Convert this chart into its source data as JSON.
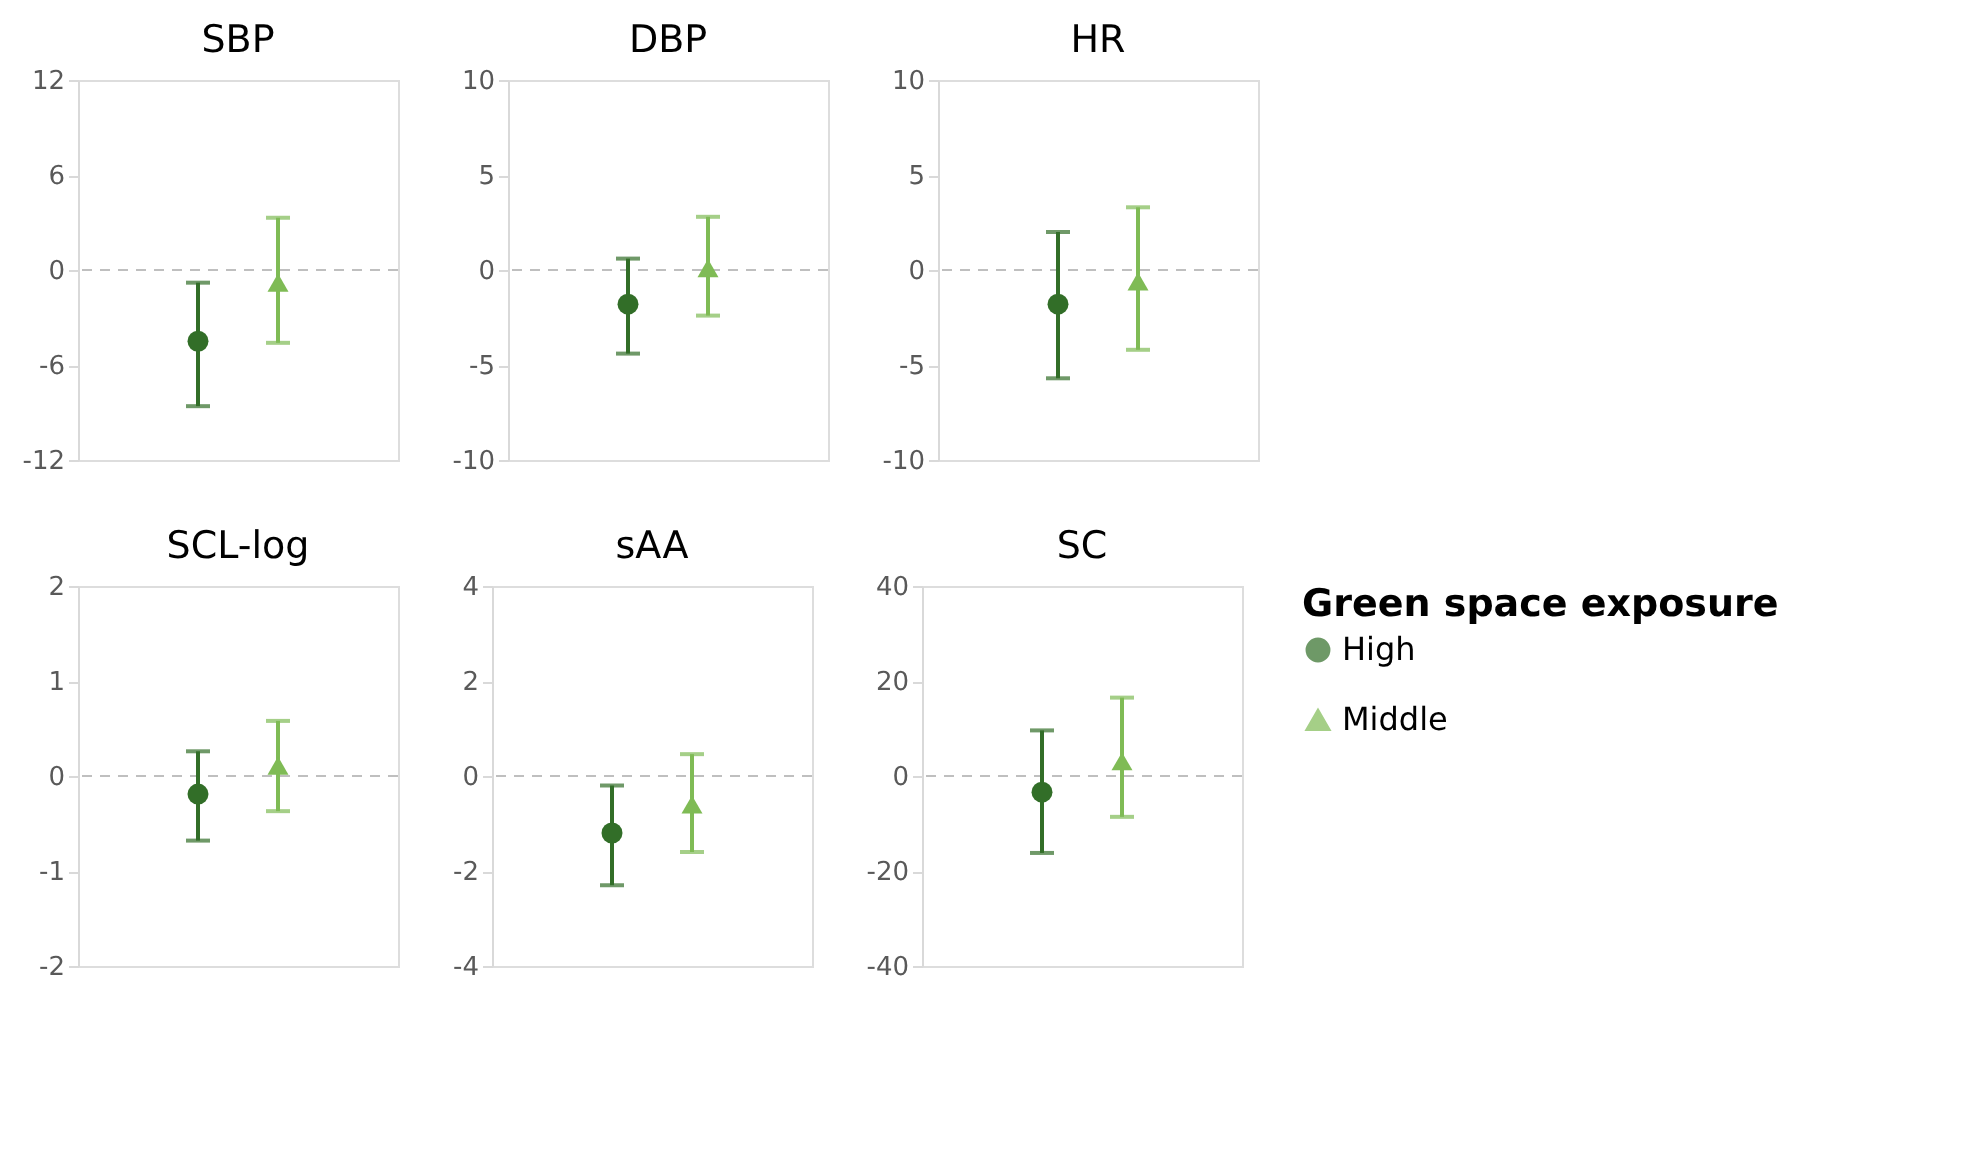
{
  "chart_data": [
    {
      "type": "scatter",
      "title": "SBP",
      "categories": [
        null,
        null
      ],
      "ylim": [
        -12,
        12
      ],
      "yticks": [
        -12,
        -6,
        0,
        6,
        12
      ],
      "grid": false,
      "legend": false,
      "ref_lines": [
        {
          "axis": "y",
          "value": 0,
          "color": "#bfbfbf",
          "line_style": "dashed"
        }
      ],
      "series": [
        {
          "color": "#326e28",
          "marker": "circle",
          "values": [
            -4.5,
            null
          ],
          "errors": [
            [
              -8.6,
              -0.8
            ],
            null
          ]
        },
        {
          "color": "#7fbb55",
          "marker": "triangle",
          "values": [
            null,
            -0.8
          ],
          "errors": [
            null,
            [
              -4.6,
              3.3
            ]
          ]
        }
      ]
    },
    {
      "type": "scatter",
      "title": "DBP",
      "categories": [
        null,
        null
      ],
      "ylim": [
        -10,
        10
      ],
      "yticks": [
        -10,
        -5,
        0,
        5,
        10
      ],
      "grid": false,
      "legend": false,
      "ref_lines": [
        {
          "axis": "y",
          "value": 0,
          "color": "#bfbfbf",
          "line_style": "dashed"
        }
      ],
      "series": [
        {
          "color": "#326e28",
          "marker": "circle",
          "values": [
            -1.8,
            null
          ],
          "errors": [
            [
              -4.4,
              0.6
            ],
            null
          ]
        },
        {
          "color": "#7fbb55",
          "marker": "triangle",
          "values": [
            null,
            0.1
          ],
          "errors": [
            null,
            [
              -2.4,
              2.8
            ]
          ]
        }
      ]
    },
    {
      "type": "scatter",
      "title": "HR",
      "categories": [
        null,
        null
      ],
      "ylim": [
        -10,
        10
      ],
      "yticks": [
        -10,
        -5,
        0,
        5,
        10
      ],
      "grid": false,
      "legend": false,
      "ref_lines": [
        {
          "axis": "y",
          "value": 0,
          "color": "#bfbfbf",
          "line_style": "dashed"
        }
      ],
      "series": [
        {
          "color": "#326e28",
          "marker": "circle",
          "values": [
            -1.8,
            null
          ],
          "errors": [
            [
              -5.7,
              2.0
            ],
            null
          ]
        },
        {
          "color": "#7fbb55",
          "marker": "triangle",
          "values": [
            null,
            -0.6
          ],
          "errors": [
            null,
            [
              -4.2,
              3.3
            ]
          ]
        }
      ]
    },
    {
      "type": "scatter",
      "title": "SCL-log",
      "categories": [
        null,
        null
      ],
      "ylim": [
        -2,
        2
      ],
      "yticks": [
        -2,
        -1,
        0,
        1,
        2
      ],
      "grid": false,
      "legend": false,
      "ref_lines": [
        {
          "axis": "y",
          "value": 0,
          "color": "#bfbfbf",
          "line_style": "dashed"
        }
      ],
      "series": [
        {
          "color": "#326e28",
          "marker": "circle",
          "values": [
            -0.19,
            null
          ],
          "errors": [
            [
              -0.68,
              0.26
            ],
            null
          ]
        },
        {
          "color": "#7fbb55",
          "marker": "triangle",
          "values": [
            null,
            0.11
          ],
          "errors": [
            null,
            [
              -0.37,
              0.58
            ]
          ]
        }
      ]
    },
    {
      "type": "scatter",
      "title": "sAA",
      "categories": [
        null,
        null
      ],
      "ylim": [
        -4,
        4
      ],
      "yticks": [
        -4,
        -2,
        0,
        2,
        4
      ],
      "grid": false,
      "legend": false,
      "ref_lines": [
        {
          "axis": "y",
          "value": 0,
          "color": "#bfbfbf",
          "line_style": "dashed"
        }
      ],
      "series": [
        {
          "color": "#326e28",
          "marker": "circle",
          "values": [
            -1.2,
            null
          ],
          "errors": [
            [
              -2.3,
              -0.2
            ],
            null
          ]
        },
        {
          "color": "#7fbb55",
          "marker": "triangle",
          "values": [
            null,
            -0.6
          ],
          "errors": [
            null,
            [
              -1.6,
              0.46
            ]
          ]
        }
      ]
    },
    {
      "type": "scatter",
      "title": "SC",
      "categories": [
        null,
        null
      ],
      "ylim": [
        -40,
        40
      ],
      "yticks": [
        -40,
        -20,
        0,
        20,
        40
      ],
      "grid": false,
      "legend": "right",
      "legend_title": "Green space exposure",
      "ref_lines": [
        {
          "axis": "y",
          "value": 0,
          "color": "#bfbfbf",
          "line_style": "dashed"
        }
      ],
      "series": [
        {
          "name": "High",
          "color": "#326e28",
          "marker": "circle",
          "values": [
            -3.4,
            null
          ],
          "errors": [
            [
              -16.2,
              9.6
            ],
            null
          ]
        },
        {
          "name": "Middle",
          "color": "#7fbb55",
          "marker": "triangle",
          "values": [
            null,
            3.1
          ],
          "errors": [
            null,
            [
              -8.6,
              16.5
            ]
          ]
        }
      ]
    }
  ]
}
